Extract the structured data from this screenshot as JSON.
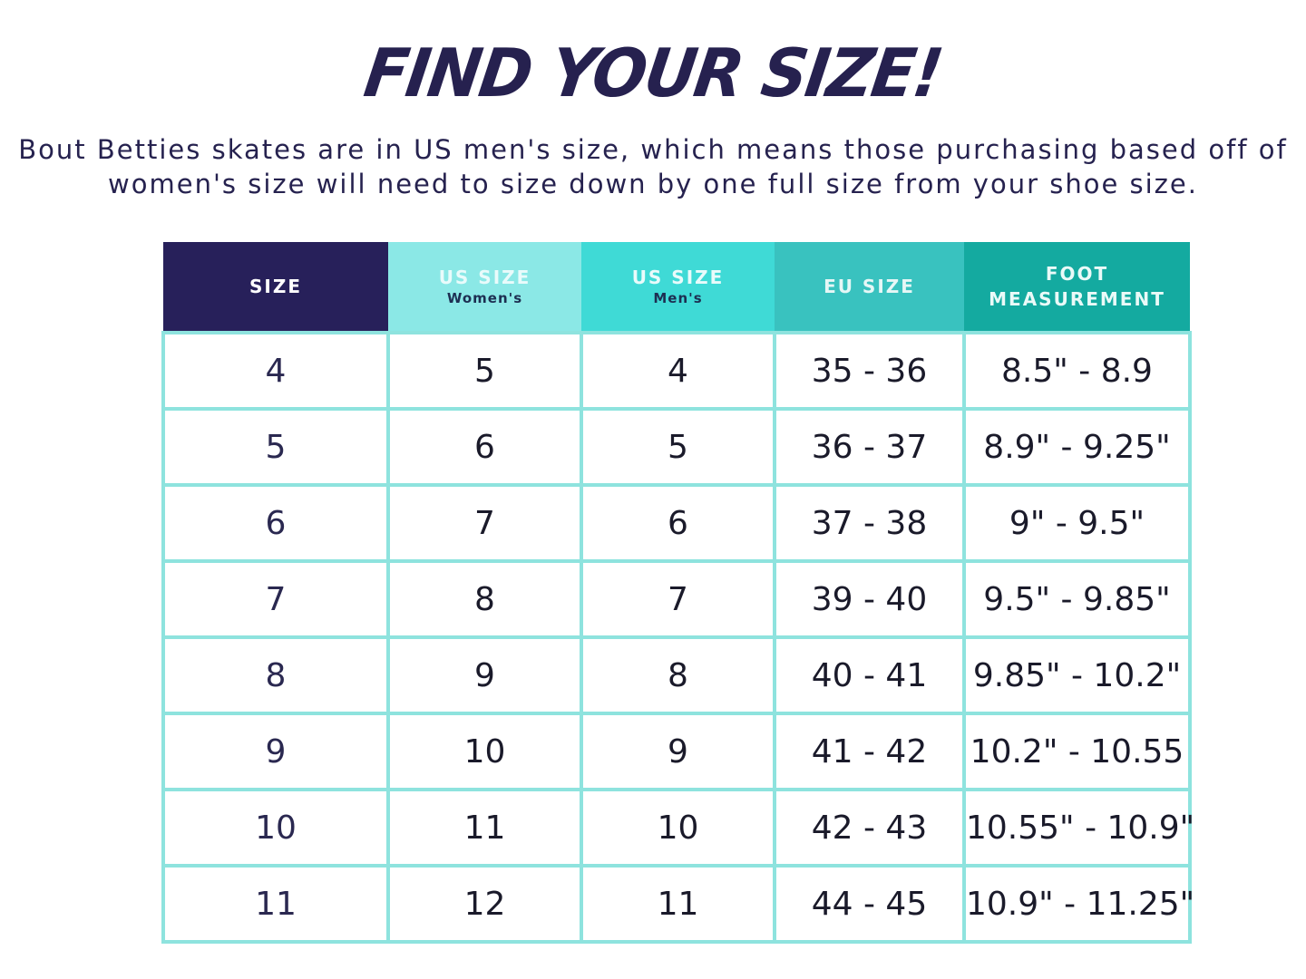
{
  "title": "FIND YOUR SIZE!",
  "subtitle_lines": [
    "Bout Betties skates are in US men's size, which means those purchasing based off of",
    "women's size will need to size down by one full size from your shoe size."
  ],
  "colors": {
    "navy": "#27205a",
    "light_aqua": "#8be8e6",
    "aqua": "#3fdad6",
    "teal": "#39c2bf",
    "dark_teal": "#14aaa0",
    "border": "#8ee3de"
  },
  "table": {
    "headers": [
      {
        "main": "SIZE",
        "minor": ""
      },
      {
        "main": "US SIZE",
        "minor": "Women's"
      },
      {
        "main": "US SIZE",
        "minor": "Men's"
      },
      {
        "main": "EU SIZE",
        "minor": ""
      },
      {
        "main": "FOOT MEASUREMENT",
        "minor": ""
      }
    ],
    "rows": [
      [
        "4",
        "5",
        "4",
        "35 - 36",
        "8.5\" - 8.9"
      ],
      [
        "5",
        "6",
        "5",
        "36 - 37",
        "8.9\" - 9.25\""
      ],
      [
        "6",
        "7",
        "6",
        "37 - 38",
        "9\" - 9.5\""
      ],
      [
        "7",
        "8",
        "7",
        "39 - 40",
        "9.5\" - 9.85\""
      ],
      [
        "8",
        "9",
        "8",
        "40 - 41",
        "9.85\" - 10.2\""
      ],
      [
        "9",
        "10",
        "9",
        "41 - 42",
        "10.2\" - 10.55"
      ],
      [
        "10",
        "11",
        "10",
        "42 - 43",
        "10.55\" - 10.9\""
      ],
      [
        "11",
        "12",
        "11",
        "44 - 45",
        "10.9\" - 11.25\""
      ]
    ]
  }
}
